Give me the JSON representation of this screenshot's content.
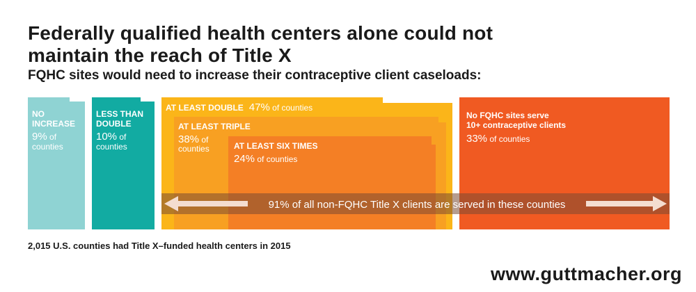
{
  "title": "Federally qualified health centers alone could not maintain the reach of Title X",
  "subtitle": "FQHC sites would need to increase their contraceptive client caseloads:",
  "footnote": "2,015 U.S. counties had Title X–funded health centers in 2015",
  "url": "www.guttmacher.org",
  "arrow_text": "91% of all non-FQHC Title X clients are served in these counties",
  "colors": {
    "no_increase": "#8fd3d3",
    "less_than_double": "#12aba2",
    "at_least_double": "#fbb519",
    "at_least_triple": "#f8a022",
    "at_least_six": "#f47f25",
    "no_fqhc": "#f05a22",
    "arrow_band": "#7a4a33"
  },
  "categories": {
    "no_increase": {
      "line1": "NO",
      "line2": "INCREASE",
      "pct": "9%",
      "pct_suffix": " of",
      "counties": "counties"
    },
    "less_than_double": {
      "line1": "LESS THAN",
      "line2": "DOUBLE",
      "pct": "10%",
      "pct_suffix": " of",
      "counties": "counties"
    },
    "at_least_double": {
      "label": "AT LEAST DOUBLE",
      "pct": "47%",
      "suffix": " of counties"
    },
    "at_least_triple": {
      "label": "AT LEAST TRIPLE",
      "pct": "38%",
      "pct_suffix": " of",
      "counties": "counties"
    },
    "at_least_six": {
      "label": "AT LEAST SIX TIMES",
      "pct": "24%",
      "suffix": " of counties"
    },
    "no_fqhc": {
      "line1": "No FQHC sites serve",
      "line2": "10+ contraceptive clients",
      "pct": "33%",
      "suffix": " of counties"
    }
  },
  "chart_data": {
    "type": "area",
    "title": "Federally qualified health centers alone could not maintain the reach of Title X",
    "subtitle": "FQHC sites would need to increase their contraceptive client caseloads:",
    "unit": "% of counties",
    "total_counties": 2015,
    "series": [
      {
        "name": "No increase",
        "value": 9
      },
      {
        "name": "Less than double",
        "value": 10
      },
      {
        "name": "At least double",
        "value": 47
      },
      {
        "name": "At least triple",
        "value": 38,
        "nested_in": "At least double"
      },
      {
        "name": "At least six times",
        "value": 24,
        "nested_in": "At least triple"
      },
      {
        "name": "No FQHC sites serve 10+ contraceptive clients",
        "value": 33
      }
    ],
    "annotation": {
      "text": "91% of all non-FQHC Title X clients are served in these counties",
      "share_of_clients": 91
    }
  }
}
